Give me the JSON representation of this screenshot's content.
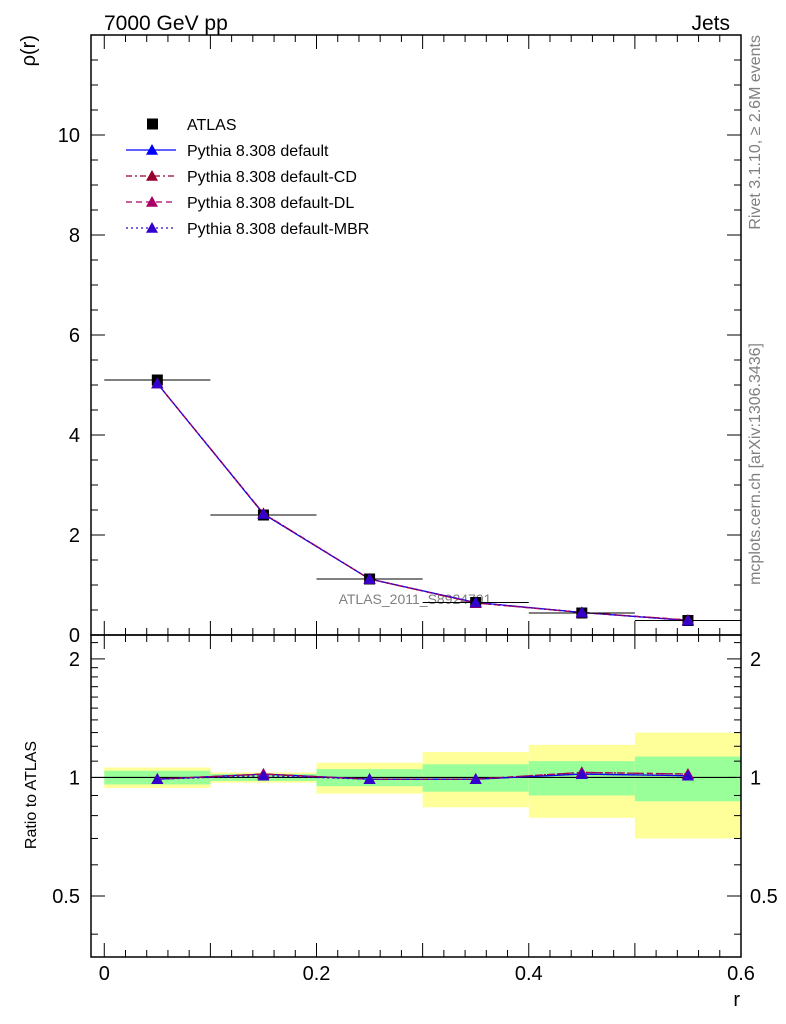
{
  "header": {
    "energy_label": "7000 GeV pp",
    "process_label": "Jets"
  },
  "side_labels": {
    "rivet": "Rivet 3.1.10, ≥ 2.6M events",
    "mcplots": "mcplots.cern.ch [arXiv:1306.3436]"
  },
  "watermark": "ATLAS_2011_S8924791",
  "chart_data": [
    {
      "type": "scatter",
      "panel": "main",
      "ylabel": "ρ(r)",
      "xlim": [
        -0.0125,
        0.6
      ],
      "ylim": [
        0,
        12
      ],
      "y_ticks": [
        0,
        2,
        4,
        6,
        8,
        10
      ],
      "x": [
        0.05,
        0.15,
        0.25,
        0.35,
        0.45,
        0.55
      ],
      "data": {
        "name": "ATLAS",
        "values": [
          5.1,
          2.4,
          1.12,
          0.65,
          0.44,
          0.29
        ]
      },
      "series": [
        {
          "name": "Pythia 8.308 default",
          "values": [
            5.03,
            2.42,
            1.12,
            0.65,
            0.45,
            0.29
          ],
          "color": "#0000ff",
          "dash": "solid"
        },
        {
          "name": "Pythia 8.308 default-CD",
          "values": [
            5.03,
            2.43,
            1.12,
            0.64,
            0.45,
            0.3
          ],
          "color": "#99002e",
          "dash": "dashdot"
        },
        {
          "name": "Pythia 8.308 default-DL",
          "values": [
            5.03,
            2.43,
            1.12,
            0.64,
            0.45,
            0.3
          ],
          "color": "#aa0066",
          "dash": "dash"
        },
        {
          "name": "Pythia 8.308 default-MBR",
          "values": [
            5.03,
            2.42,
            1.12,
            0.65,
            0.45,
            0.29
          ],
          "color": "#3300cc",
          "dash": "dot"
        }
      ],
      "legend_position": "top-left"
    },
    {
      "type": "scatter",
      "panel": "ratio",
      "xlabel": "r",
      "ylabel": "Ratio to ATLAS",
      "xlim": [
        -0.0125,
        0.6
      ],
      "ylim": [
        0.35,
        2.3
      ],
      "x_ticks": [
        0,
        0.2,
        0.4,
        0.6
      ],
      "x_tick_labels": [
        "0",
        "0.2",
        "0.4",
        "0.6"
      ],
      "y_ticks": [
        0.5,
        1,
        2
      ],
      "bin_edges": [
        0,
        0.1,
        0.2,
        0.3,
        0.4,
        0.5,
        0.6
      ],
      "band_inner": {
        "color": "#99ff99",
        "low": [
          0.96,
          0.98,
          0.95,
          0.92,
          0.9,
          0.87
        ],
        "high": [
          1.04,
          1.02,
          1.05,
          1.08,
          1.1,
          1.13
        ]
      },
      "band_outer": {
        "color": "#ffff99",
        "low": [
          0.94,
          0.97,
          0.91,
          0.84,
          0.79,
          0.7
        ],
        "high": [
          1.06,
          1.03,
          1.09,
          1.16,
          1.21,
          1.3
        ]
      },
      "x": [
        0.05,
        0.15,
        0.25,
        0.35,
        0.45,
        0.55
      ],
      "series": [
        {
          "name": "Pythia 8.308 default",
          "values": [
            0.99,
            1.02,
            0.99,
            0.99,
            1.02,
            1.01
          ],
          "color": "#0000ff",
          "dash": "solid"
        },
        {
          "name": "Pythia 8.308 default-CD",
          "values": [
            0.99,
            1.02,
            0.99,
            0.99,
            1.03,
            1.02
          ],
          "color": "#99002e",
          "dash": "dashdot"
        },
        {
          "name": "Pythia 8.308 default-DL",
          "values": [
            0.99,
            1.02,
            0.99,
            0.99,
            1.03,
            1.02
          ],
          "color": "#aa0066",
          "dash": "dash"
        },
        {
          "name": "Pythia 8.308 default-MBR",
          "values": [
            0.99,
            1.01,
            0.99,
            0.99,
            1.02,
            1.01
          ],
          "color": "#3300cc",
          "dash": "dot"
        }
      ]
    }
  ]
}
